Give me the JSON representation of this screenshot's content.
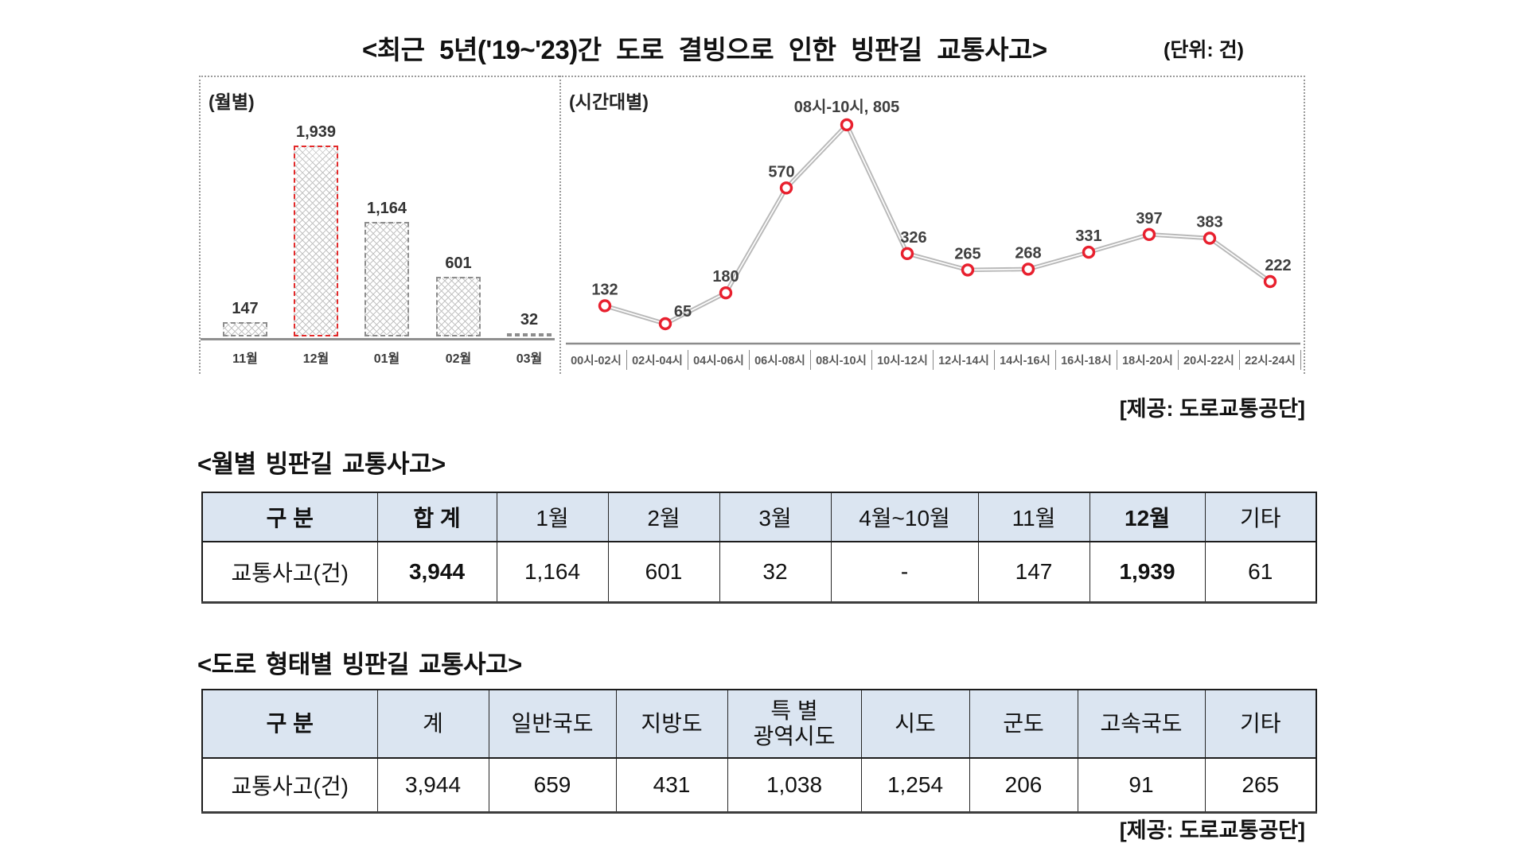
{
  "title": "<최근 5년('19~'23)간 도로 결빙으로 인한 빙판길 교통사고>",
  "unit_label": "(단위: 건)",
  "figure": {
    "source": "[제공: 도로교통공단]"
  },
  "chart_data": [
    {
      "type": "bar",
      "title": "(월별)",
      "categories": [
        "11월",
        "12월",
        "01월",
        "02월",
        "03월"
      ],
      "values": [
        147,
        1939,
        1164,
        601,
        32
      ],
      "value_labels": [
        "147",
        "1,939",
        "1,164",
        "601",
        "32"
      ],
      "highlight_category": "12월",
      "highlight_color": "#e32a2a",
      "xlabel": "",
      "ylabel": "",
      "ylim": [
        0,
        2000
      ],
      "grid": false,
      "legend": "none",
      "unit": "건"
    },
    {
      "type": "line",
      "title": "(시간대별)",
      "categories": [
        "00시-02시",
        "02시-04시",
        "04시-06시",
        "06시-08시",
        "08시-10시",
        "10시-12시",
        "12시-14시",
        "14시-16시",
        "16시-18시",
        "18시-20시",
        "20시-22시",
        "22시-24시"
      ],
      "values": [
        132,
        65,
        180,
        570,
        805,
        326,
        265,
        268,
        331,
        397,
        383,
        222
      ],
      "point_labels": [
        "132",
        "65",
        "180",
        "570",
        "08시-10시, 805",
        "326",
        "265",
        "268",
        "331",
        "397",
        "383",
        "222"
      ],
      "peak_annotation": "08시-10시, 805",
      "marker_color": "#e8202e",
      "line_color": "#b9b9b9",
      "xlabel": "",
      "ylabel": "",
      "ylim": [
        0,
        900
      ],
      "grid": false,
      "legend": "none",
      "unit": "건"
    }
  ],
  "table1": {
    "title": "<월별 빙판길 교통사고>",
    "headers": [
      "구 분",
      "합 계",
      "1월",
      "2월",
      "3월",
      "4월~10월",
      "11월",
      "12월",
      "기타"
    ],
    "rows": [
      [
        "교통사고(건)",
        "3,944",
        "1,164",
        "601",
        "32",
        "-",
        "147",
        "1,939",
        "61"
      ]
    ],
    "header_bg": "#dbe5f1"
  },
  "table2": {
    "title": "<도로 형태별 빙판길 교통사고>",
    "headers": [
      "구 분",
      "계",
      "일반국도",
      "지방도",
      "특 별\n광역시도",
      "시도",
      "군도",
      "고속국도",
      "기타"
    ],
    "rows": [
      [
        "교통사고(건)",
        "3,944",
        "659",
        "431",
        "1,038",
        "1,254",
        "206",
        "91",
        "265"
      ]
    ],
    "header_bg": "#dbe5f1",
    "source": "[제공: 도로교통공단]"
  }
}
